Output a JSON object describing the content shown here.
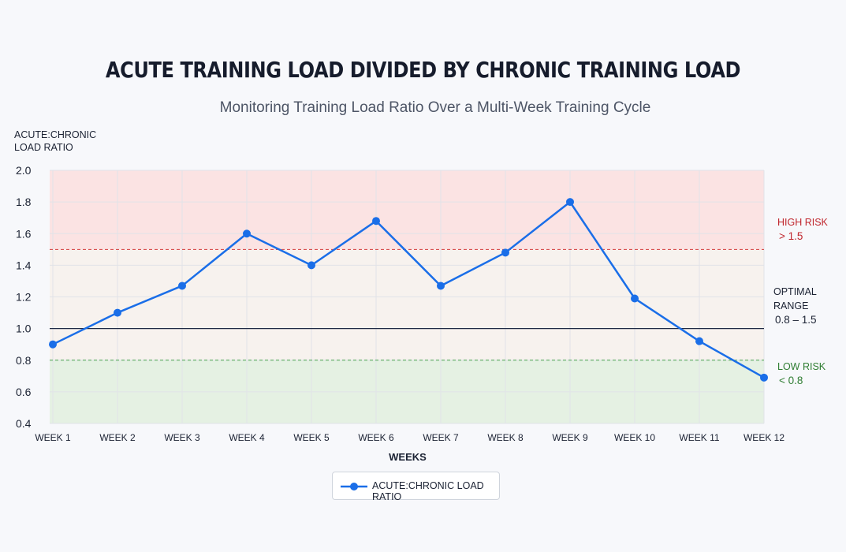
{
  "chart_data": {
    "type": "line",
    "title": "ACUTE TRAINING LOAD DIVIDED BY CHRONIC TRAINING LOAD",
    "subtitle": "Monitoring Training Load Ratio Over a Multi-Week Training Cycle",
    "ylabel": "ACUTE:CHRONIC\nLOAD RATIO",
    "xlabel": "WEEKS",
    "ylim": [
      0.4,
      2.0
    ],
    "yticks": [
      "2.0",
      "1.8",
      "1.6",
      "1.4",
      "1.2",
      "1.0",
      "0.8",
      "0.6",
      "0.4"
    ],
    "categories": [
      "WEEK 1",
      "WEEK 2",
      "WEEK 3",
      "WEEK 4",
      "WEEK 5",
      "WEEK 6",
      "WEEK 7",
      "WEEK 8",
      "WEEK 9",
      "WEEK 10",
      "WEEK 11",
      "WEEK 12"
    ],
    "series": [
      {
        "name": "ACUTE:CHRONIC LOAD RATIO",
        "color": "#1a6ee8",
        "values": [
          0.9,
          1.1,
          1.27,
          1.6,
          1.4,
          1.68,
          1.27,
          1.48,
          1.8,
          1.19,
          0.92,
          0.69
        ]
      }
    ],
    "reference_lines": [
      {
        "value": 1.5,
        "style": "dashed",
        "color": "#d43a3a"
      },
      {
        "value": 1.0,
        "style": "solid",
        "color": "#1f2a44"
      },
      {
        "value": 0.8,
        "style": "dashed",
        "color": "#4aa34f"
      }
    ],
    "zones": [
      {
        "from": 1.5,
        "to": 2.0,
        "color": "#fbe3e3"
      },
      {
        "from": 0.8,
        "to": 1.5,
        "color": "#f7f2ee"
      },
      {
        "from": 0.4,
        "to": 0.8,
        "color": "#e5f1e3"
      }
    ],
    "annotations": {
      "high_risk": {
        "label": "HIGH RISK",
        "value": "> 1.5",
        "color": "#c0262d"
      },
      "optimal": {
        "label": "OPTIMAL RANGE",
        "value": "0.8 – 1.5",
        "color": "#1b2233"
      },
      "low_risk": {
        "label": "LOW RISK",
        "value": "< 0.8",
        "color": "#2f7d32"
      }
    },
    "grid": true,
    "legend_position": "bottom-center"
  }
}
